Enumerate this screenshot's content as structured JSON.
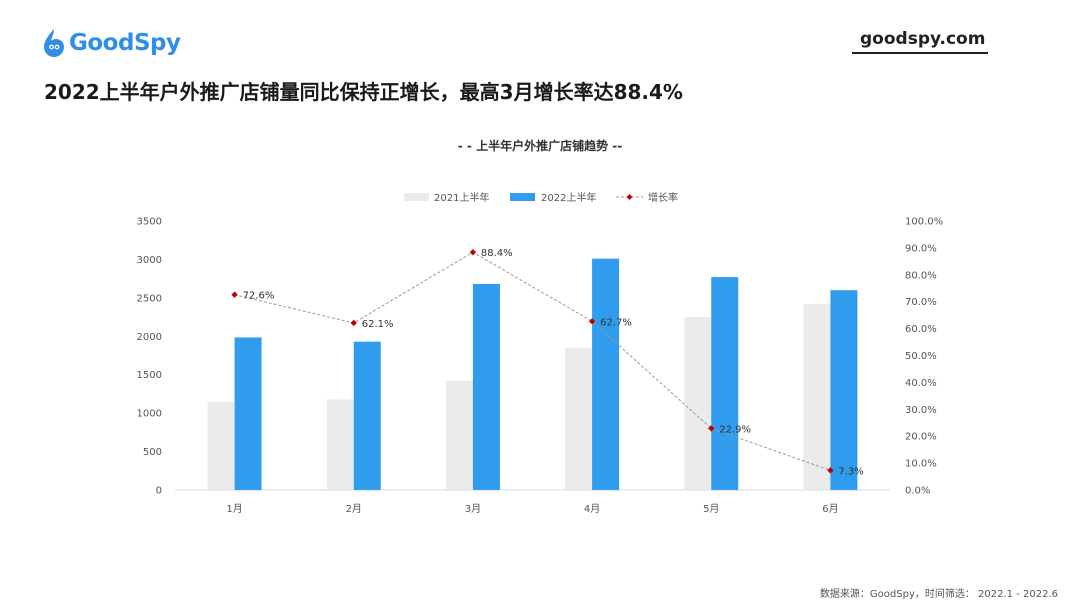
{
  "header": {
    "brand": "GoodSpy",
    "site": "goodspy.com",
    "headline": "2022上半年户外推广店铺量同比保持正增长，最高3月增长率达88.4%"
  },
  "source_note": "数据来源：GoodSpy，时间筛选： 2022.1 - 2022.6",
  "colors": {
    "brand": "#2f8fe8",
    "series_2021": "#ebebeb",
    "series_2022": "#2f9cee",
    "growth_line": "#999999",
    "growth_marker": "#c00000"
  },
  "chart_data": {
    "type": "bar",
    "title": "- - 上半年户外推广店铺趋势 --",
    "categories": [
      "1月",
      "2月",
      "3月",
      "4月",
      "5月",
      "6月"
    ],
    "series": [
      {
        "name": "2021上半年",
        "type": "bar",
        "values": [
          1150,
          1180,
          1420,
          1850,
          2250,
          2420
        ]
      },
      {
        "name": "2022上半年",
        "type": "bar",
        "values": [
          1985,
          1930,
          2680,
          3010,
          2770,
          2600
        ]
      },
      {
        "name": "增长率",
        "type": "line",
        "axis": "right",
        "values": [
          72.6,
          62.1,
          88.4,
          62.7,
          22.9,
          7.3
        ]
      }
    ],
    "data_labels": [
      "72.6%",
      "62.1%",
      "88.4%",
      "62.7%",
      "22.9%",
      "7.3%"
    ],
    "y_left": {
      "min": 0,
      "max": 3500,
      "ticks": [
        "0",
        "500",
        "1000",
        "1500",
        "2000",
        "2500",
        "3000",
        "3500"
      ]
    },
    "y_right": {
      "min": 0,
      "max": 100,
      "ticks": [
        "0.0%",
        "10.0%",
        "20.0%",
        "30.0%",
        "40.0%",
        "50.0%",
        "60.0%",
        "70.0%",
        "80.0%",
        "90.0%",
        "100.0%"
      ]
    },
    "legend_position": "top-center",
    "grid": false
  }
}
